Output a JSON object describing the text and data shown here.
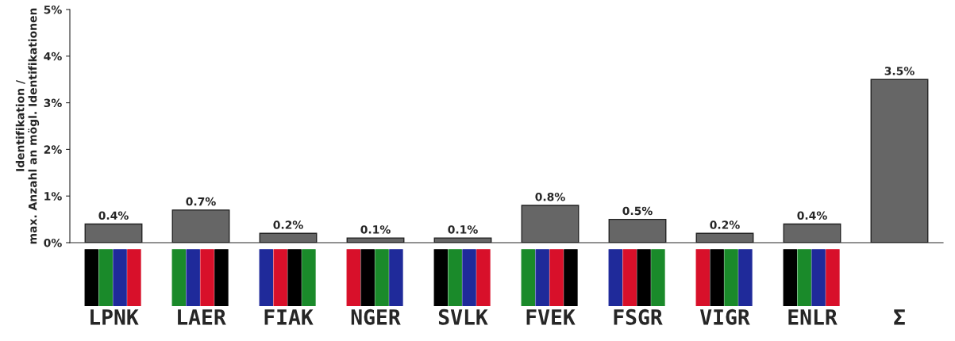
{
  "chart_data": {
    "type": "bar",
    "ylabel": "Identifikation /\nmax. Anzahl an mögl. Identifikationen",
    "categories": [
      "LPNK",
      "LAER",
      "FIAK",
      "NGER",
      "SVLK",
      "FVEK",
      "FSGR",
      "VIGR",
      "ENLR",
      "Σ"
    ],
    "values": [
      0.4,
      0.7,
      0.2,
      0.1,
      0.1,
      0.8,
      0.5,
      0.2,
      0.4,
      3.5
    ],
    "value_labels": [
      "0.4%",
      "0.7%",
      "0.2%",
      "0.1%",
      "0.1%",
      "0.8%",
      "0.5%",
      "0.2%",
      "0.4%",
      "3.5%"
    ],
    "color": "#666666",
    "ylim": [
      0,
      5
    ],
    "yticks": [
      {
        "value": 0,
        "label": "0%"
      },
      {
        "value": 1,
        "label": "1%"
      },
      {
        "value": 2,
        "label": "2%"
      },
      {
        "value": 3,
        "label": "3%"
      },
      {
        "value": 4,
        "label": "4%"
      },
      {
        "value": 5,
        "label": "5%"
      }
    ],
    "grid": false,
    "legend": false
  }
}
